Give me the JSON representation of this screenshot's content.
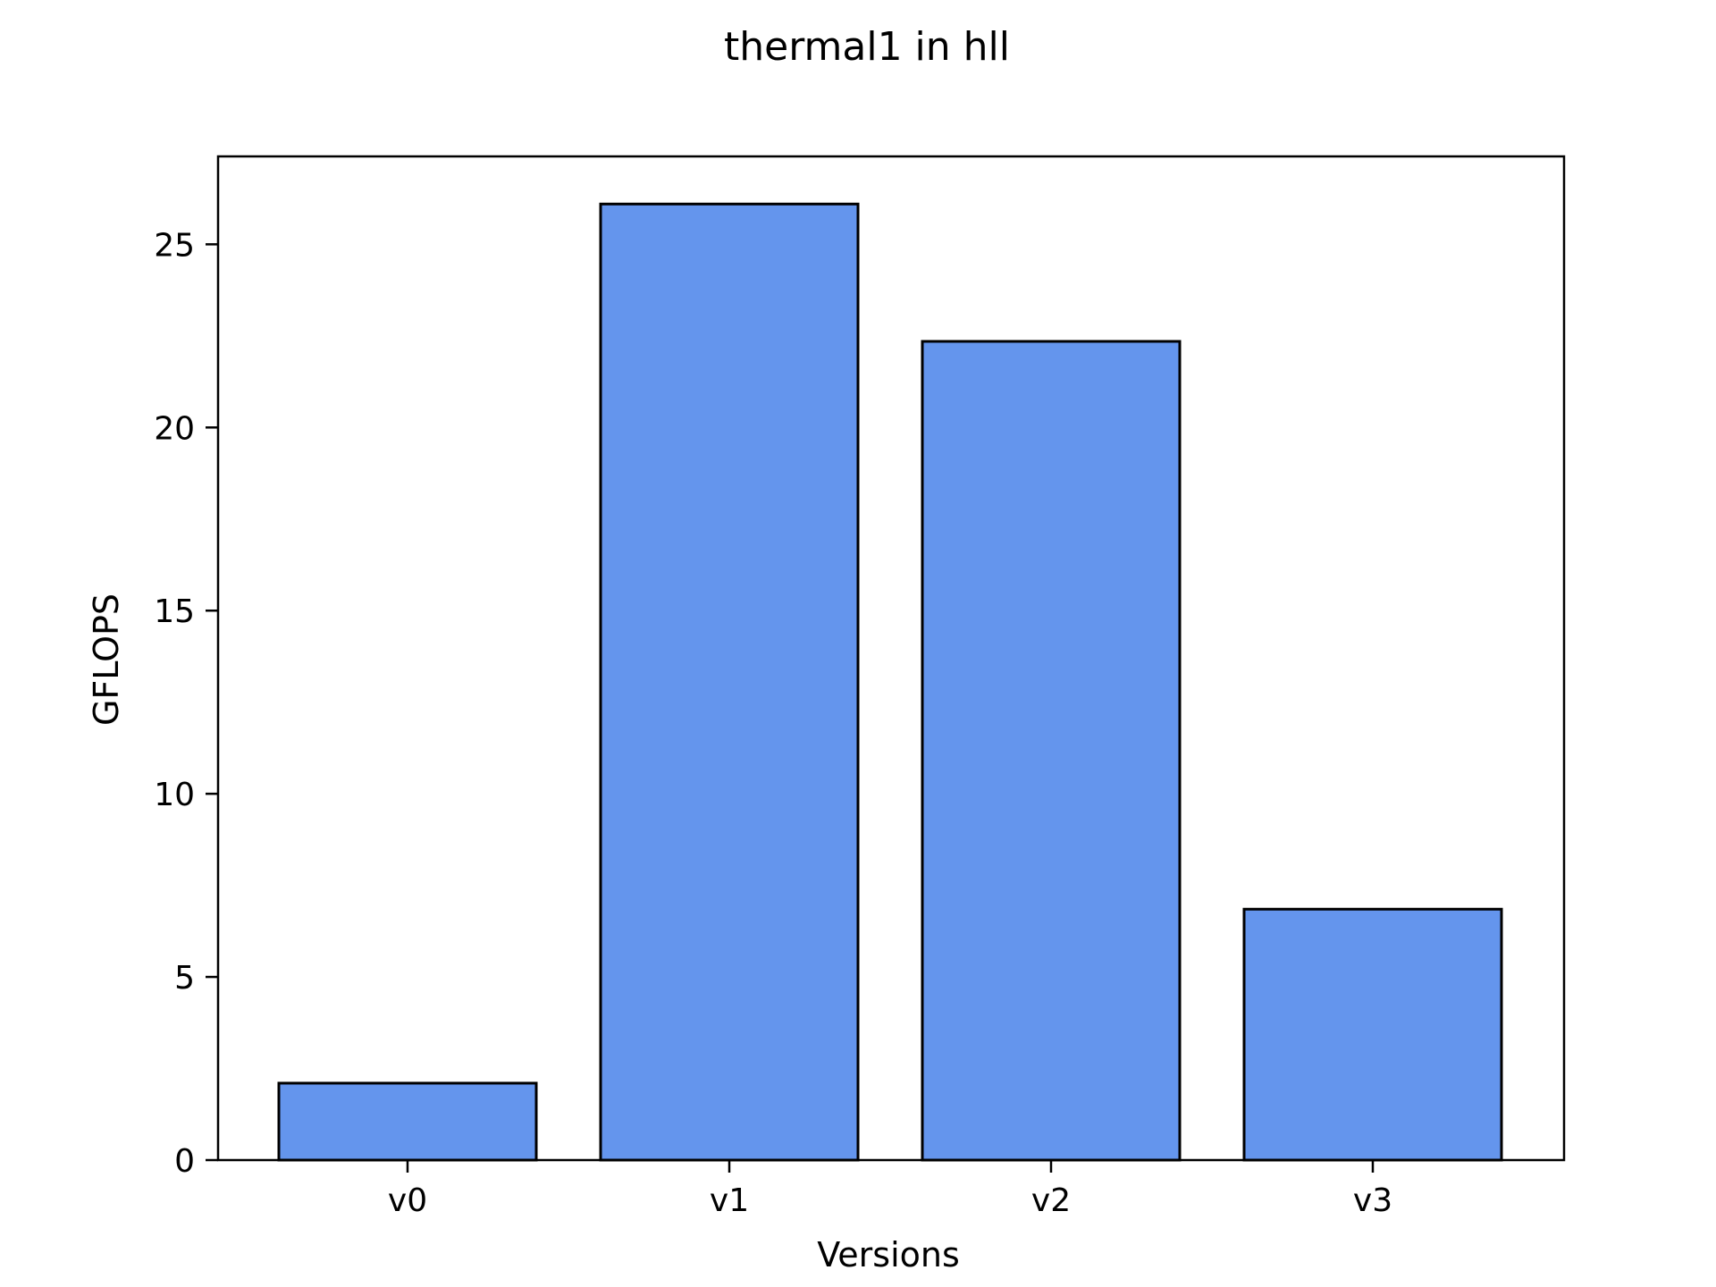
{
  "chart_data": {
    "type": "bar",
    "title": "thermal1 in hll",
    "xlabel": "Versions",
    "ylabel": "GFLOPS",
    "categories": [
      "v0",
      "v1",
      "v2",
      "v3"
    ],
    "values": [
      2.1,
      26.1,
      22.35,
      6.85
    ],
    "ylim": [
      0,
      27.4
    ],
    "yticks": [
      0,
      5,
      10,
      15,
      20,
      25
    ],
    "ytick_labels": [
      "0",
      "5",
      "10",
      "15",
      "20",
      "25"
    ],
    "grid": false,
    "legend": "none",
    "colors": {
      "bar_fill": "#6495ED",
      "bar_edge": "#000000",
      "axes": "#000000",
      "background": "#ffffff"
    }
  }
}
